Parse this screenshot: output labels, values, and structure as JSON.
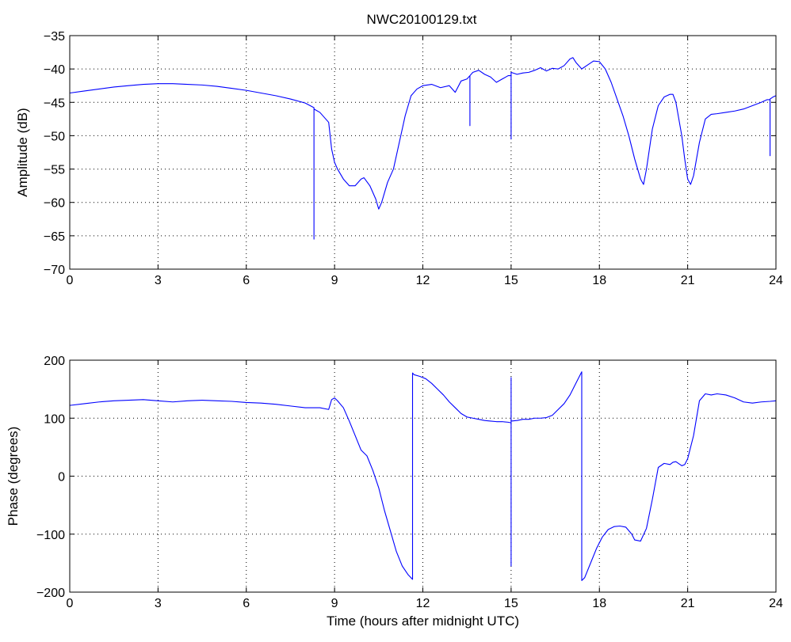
{
  "title": "NWC20100129.txt",
  "chart_data": [
    {
      "type": "line",
      "title": "NWC20100129.txt",
      "xlabel": "",
      "ylabel": "Amplitude (dB)",
      "xlim": [
        0,
        24
      ],
      "ylim": [
        -70,
        -35
      ],
      "xticks": [
        0,
        3,
        6,
        9,
        12,
        15,
        18,
        21,
        24
      ],
      "xtick_labels": [
        "0",
        "3",
        "6",
        "9",
        "12",
        "15",
        "18",
        "21",
        "24"
      ],
      "yticks": [
        -70,
        -65,
        -60,
        -55,
        -50,
        -45,
        -40,
        -35
      ],
      "ytick_labels": [
        "−70",
        "−65",
        "−60",
        "−55",
        "−50",
        "−45",
        "−40",
        "−35"
      ],
      "grid": true,
      "line_color": "#0000ff",
      "series": [
        {
          "x": [
            0,
            0.5,
            1,
            1.5,
            2,
            2.5,
            3,
            3.5,
            4,
            4.5,
            5,
            5.5,
            6,
            6.5,
            7,
            7.5,
            8,
            8.3,
            8.3,
            8.3,
            8.5,
            8.8,
            8.9,
            9.0,
            9.1,
            9.3,
            9.5,
            9.7,
            9.9,
            10.0,
            10.2,
            10.4,
            10.5,
            10.6,
            10.8,
            11.0,
            11.2,
            11.4,
            11.6,
            11.8,
            12.0,
            12.3,
            12.6,
            12.9,
            13.1,
            13.3,
            13.5,
            13.6,
            13.6,
            13.6,
            13.7,
            13.9,
            14.1,
            14.3,
            14.5,
            14.7,
            14.9,
            15.0,
            15.0,
            15.0,
            15.2,
            15.4,
            15.6,
            15.8,
            16.0,
            16.2,
            16.4,
            16.6,
            16.8,
            17.0,
            17.1,
            17.2,
            17.4,
            17.6,
            17.8,
            18.0,
            18.2,
            18.4,
            18.6,
            18.8,
            19.0,
            19.2,
            19.4,
            19.5,
            19.6,
            19.8,
            20.0,
            20.2,
            20.4,
            20.5,
            20.6,
            20.8,
            20.9,
            21.0,
            21.1,
            21.2,
            21.4,
            21.6,
            21.8,
            22.0,
            22.3,
            22.6,
            22.9,
            23.2,
            23.5,
            23.7,
            23.8,
            23.8,
            23.8,
            23.9,
            24.0
          ],
          "y": [
            -43.6,
            -43.3,
            -43.0,
            -42.7,
            -42.5,
            -42.3,
            -42.2,
            -42.2,
            -42.3,
            -42.4,
            -42.6,
            -42.9,
            -43.2,
            -43.6,
            -44.0,
            -44.5,
            -45.1,
            -45.8,
            -65.5,
            -46.0,
            -46.5,
            -48.0,
            -52.0,
            -54.0,
            -55.0,
            -56.5,
            -57.5,
            -57.5,
            -56.5,
            -56.3,
            -57.5,
            -59.5,
            -61.0,
            -60.0,
            -57.0,
            -55.0,
            -51.0,
            -47.0,
            -44.0,
            -43.0,
            -42.5,
            -42.3,
            -42.8,
            -42.5,
            -43.5,
            -41.8,
            -41.5,
            -41.0,
            -48.5,
            -41.0,
            -40.5,
            -40.2,
            -40.8,
            -41.2,
            -42.0,
            -41.5,
            -41.0,
            -41.0,
            -50.5,
            -40.5,
            -40.8,
            -40.6,
            -40.5,
            -40.2,
            -39.8,
            -40.3,
            -39.9,
            -40.0,
            -39.5,
            -38.5,
            -38.3,
            -39.0,
            -40.0,
            -39.4,
            -38.8,
            -38.9,
            -40.0,
            -42.0,
            -44.5,
            -47.0,
            -50.0,
            -53.5,
            -56.5,
            -57.3,
            -55.0,
            -49.0,
            -45.5,
            -44.2,
            -43.8,
            -43.8,
            -45.0,
            -50.0,
            -53.5,
            -56.5,
            -57.3,
            -56.0,
            -51.0,
            -47.5,
            -46.8,
            -46.7,
            -46.5,
            -46.3,
            -46.0,
            -45.5,
            -45.0,
            -44.6,
            -44.6,
            -53.0,
            -44.5,
            -44.2,
            -44.0
          ]
        }
      ]
    },
    {
      "type": "line",
      "title": "",
      "xlabel": "Time (hours after midnight UTC)",
      "ylabel": "Phase (degrees)",
      "xlim": [
        0,
        24
      ],
      "ylim": [
        -200,
        200
      ],
      "xticks": [
        0,
        3,
        6,
        9,
        12,
        15,
        18,
        21,
        24
      ],
      "xtick_labels": [
        "0",
        "3",
        "6",
        "9",
        "12",
        "15",
        "18",
        "21",
        "24"
      ],
      "yticks": [
        -200,
        -100,
        0,
        100,
        200
      ],
      "ytick_labels": [
        "−200",
        "−100",
        "0",
        "100",
        "200"
      ],
      "grid": true,
      "line_color": "#0000ff",
      "series": [
        {
          "x": [
            0,
            0.5,
            1,
            1.5,
            2,
            2.5,
            3,
            3.5,
            4,
            4.5,
            5,
            5.5,
            6,
            6.5,
            7,
            7.5,
            8,
            8.5,
            8.8,
            8.9,
            9.0,
            9.1,
            9.3,
            9.5,
            9.7,
            9.9,
            10.1,
            10.3,
            10.5,
            10.7,
            10.9,
            11.1,
            11.3,
            11.5,
            11.65,
            11.65,
            11.7,
            11.9,
            12.1,
            12.3,
            12.5,
            12.7,
            12.9,
            13.1,
            13.3,
            13.5,
            13.7,
            13.9,
            14.1,
            14.3,
            14.5,
            14.7,
            14.9,
            15.0,
            15.0,
            15.0,
            15.0,
            15.0,
            15.2,
            15.4,
            15.6,
            15.8,
            16.0,
            16.2,
            16.4,
            16.6,
            16.8,
            17.0,
            17.2,
            17.4,
            17.4,
            17.5,
            17.7,
            17.9,
            18.1,
            18.3,
            18.5,
            18.7,
            18.9,
            19.1,
            19.2,
            19.4,
            19.6,
            19.8,
            20.0,
            20.2,
            20.4,
            20.5,
            20.6,
            20.8,
            20.9,
            21.0,
            21.1,
            21.2,
            21.4,
            21.6,
            21.8,
            22.0,
            22.3,
            22.6,
            22.9,
            23.2,
            23.5,
            23.8,
            24.0
          ],
          "y": [
            122,
            125,
            128,
            130,
            131,
            132,
            130,
            128,
            130,
            131,
            130,
            129,
            127,
            126,
            124,
            121,
            118,
            118,
            115,
            132,
            135,
            130,
            118,
            95,
            70,
            45,
            35,
            10,
            -20,
            -60,
            -95,
            -130,
            -155,
            -170,
            -178,
            178,
            175,
            172,
            168,
            160,
            150,
            140,
            128,
            118,
            108,
            102,
            100,
            98,
            96,
            95,
            94,
            94,
            93,
            92,
            -155,
            170,
            95,
            95,
            96,
            98,
            98,
            100,
            100,
            101,
            105,
            115,
            125,
            140,
            160,
            180,
            -180,
            -175,
            -150,
            -125,
            -105,
            -92,
            -87,
            -86,
            -88,
            -100,
            -110,
            -112,
            -90,
            -40,
            15,
            22,
            20,
            24,
            25,
            18,
            20,
            30,
            50,
            70,
            130,
            142,
            140,
            142,
            140,
            135,
            128,
            126,
            128,
            129,
            130
          ]
        }
      ]
    }
  ]
}
